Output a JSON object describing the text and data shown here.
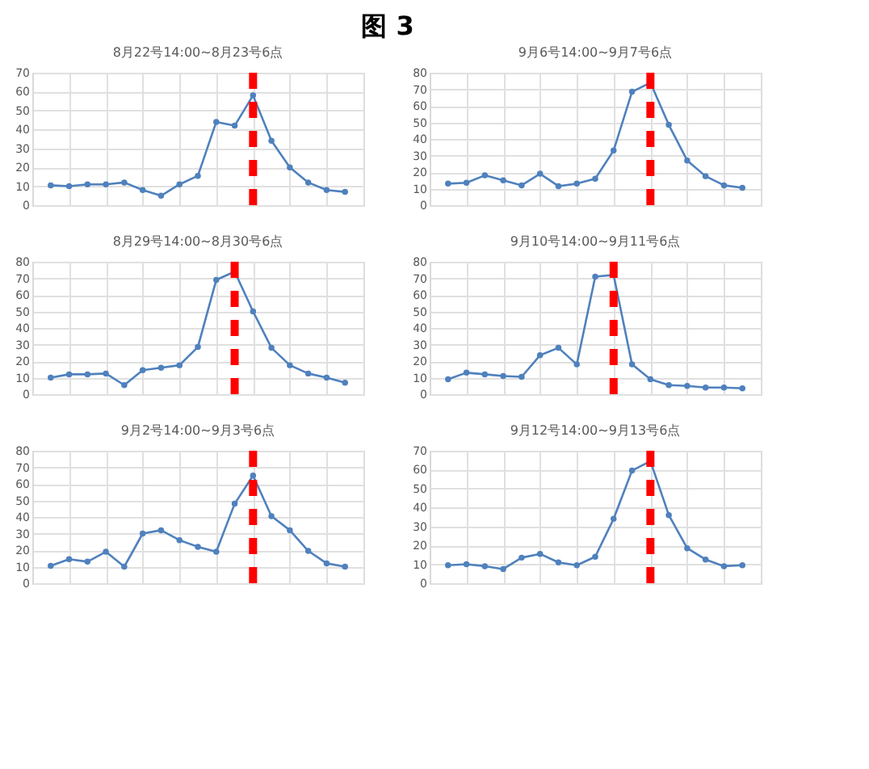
{
  "chart_data": [
    {
      "type": "other",
      "title": "图 3"
    },
    {
      "type": "line",
      "title": "8月22号14:00~8月23号6点",
      "categories": [
        null,
        null,
        null,
        null,
        null,
        null,
        null,
        null,
        null,
        null,
        null,
        null,
        null,
        null,
        null,
        null,
        null
      ],
      "series": [
        {
          "color": "#4f81bd",
          "values": [
            10.5,
            10,
            11,
            11,
            12,
            8,
            5,
            11,
            15.5,
            44,
            42,
            58,
            34,
            20,
            12,
            8,
            7
          ]
        }
      ],
      "ylim": [
        0,
        70
      ],
      "yticks": [
        0,
        10,
        20,
        30,
        40,
        50,
        60,
        70
      ],
      "tick_labels": "y",
      "grid": true,
      "marker": "circle",
      "line_style": "solid"
    },
    {
      "type": "line",
      "title": "9月6号14:00~9月7号6点",
      "categories": [
        null,
        null,
        null,
        null,
        null,
        null,
        null,
        null,
        null,
        null,
        null,
        null,
        null,
        null,
        null,
        null,
        null
      ],
      "series": [
        {
          "color": "#4f81bd",
          "values": [
            13,
            13.5,
            18,
            15,
            12,
            19,
            11.5,
            13,
            16,
            33,
            68.5,
            74,
            48.5,
            27,
            17.5,
            12,
            10.5
          ]
        }
      ],
      "ylim": [
        0,
        80
      ],
      "yticks": [
        0,
        10,
        20,
        30,
        40,
        50,
        60,
        70,
        80
      ],
      "tick_labels": "y",
      "grid": true,
      "marker": "circle",
      "line_style": "solid"
    },
    {
      "type": "line",
      "title": "8月29号14:00~8月30号6点",
      "categories": [
        null,
        null,
        null,
        null,
        null,
        null,
        null,
        null,
        null,
        null,
        null,
        null,
        null,
        null,
        null,
        null,
        null
      ],
      "series": [
        {
          "color": "#4f81bd",
          "values": [
            10,
            12,
            12,
            12.5,
            5.5,
            14.5,
            16,
            17.5,
            28.5,
            69,
            74,
            50,
            28,
            17.5,
            12.5,
            10,
            7
          ]
        }
      ],
      "ylim": [
        0,
        80
      ],
      "yticks": [
        0,
        10,
        20,
        30,
        40,
        50,
        60,
        70,
        80
      ],
      "tick_labels": "y",
      "grid": true,
      "marker": "circle",
      "line_style": "solid"
    },
    {
      "type": "line",
      "title": "9月10号14:00~9月11号6点",
      "categories": [
        null,
        null,
        null,
        null,
        null,
        null,
        null,
        null,
        null,
        null,
        null,
        null,
        null,
        null,
        null,
        null,
        null
      ],
      "series": [
        {
          "color": "#4f81bd",
          "values": [
            9,
            13,
            12,
            11,
            10.5,
            23.5,
            28,
            18,
            71,
            72,
            18,
            9,
            5.5,
            5,
            4,
            4,
            3.5
          ]
        }
      ],
      "ylim": [
        0,
        80
      ],
      "yticks": [
        0,
        10,
        20,
        30,
        40,
        50,
        60,
        70,
        80
      ],
      "tick_labels": "y",
      "grid": true,
      "marker": "circle",
      "line_style": "solid"
    },
    {
      "type": "line",
      "title": "9月2号14:00~9月3号6点",
      "categories": [
        null,
        null,
        null,
        null,
        null,
        null,
        null,
        null,
        null,
        null,
        null,
        null,
        null,
        null,
        null,
        null,
        null
      ],
      "series": [
        {
          "color": "#4f81bd",
          "values": [
            10.5,
            14.5,
            13,
            19,
            10,
            30,
            32,
            26,
            22,
            19,
            48,
            65,
            40.5,
            32,
            19.5,
            12,
            10
          ]
        }
      ],
      "ylim": [
        0,
        80
      ],
      "yticks": [
        0,
        10,
        20,
        30,
        40,
        50,
        60,
        70,
        80
      ],
      "tick_labels": "y",
      "grid": true,
      "marker": "circle",
      "line_style": "solid"
    },
    {
      "type": "line",
      "title": "9月12号14:00~9月13号6点",
      "categories": [
        null,
        null,
        null,
        null,
        null,
        null,
        null,
        null,
        null,
        null,
        null,
        null,
        null,
        null,
        null,
        null,
        null
      ],
      "series": [
        {
          "color": "#4f81bd",
          "values": [
            9.5,
            10,
            9,
            7.5,
            13.5,
            15.5,
            11,
            9.5,
            14,
            34,
            59.5,
            64.5,
            36,
            18.5,
            12.5,
            9,
            9.5
          ]
        }
      ],
      "ylim": [
        0,
        70
      ],
      "yticks": [
        0,
        10,
        20,
        30,
        40,
        50,
        60,
        70
      ],
      "tick_labels": "y",
      "grid": true,
      "marker": "circle",
      "line_style": "solid"
    }
  ]
}
